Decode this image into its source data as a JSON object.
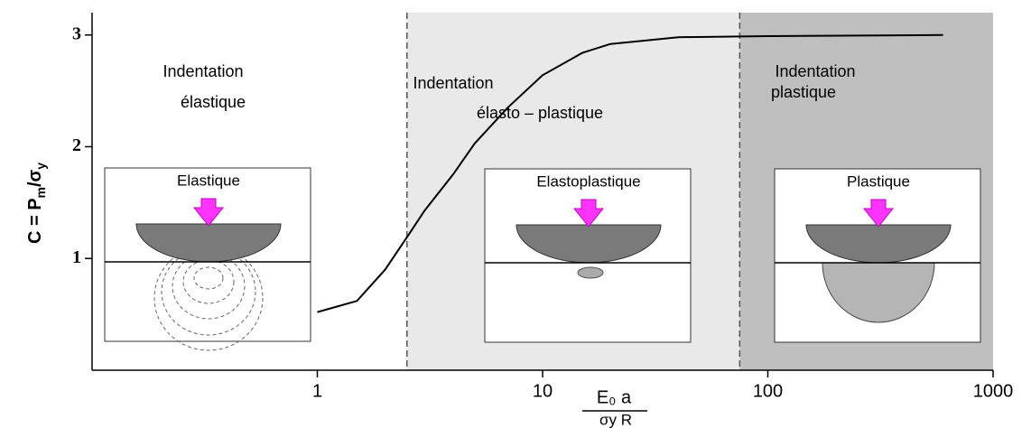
{
  "chart_data": {
    "type": "line",
    "log_x": true,
    "x": [
      1,
      1.5,
      2,
      2.5,
      3,
      4,
      5,
      7,
      10,
      15,
      20,
      40,
      100,
      600
    ],
    "values": [
      0.52,
      0.62,
      0.9,
      1.19,
      1.43,
      1.75,
      2.03,
      2.35,
      2.64,
      2.84,
      2.92,
      2.98,
      2.99,
      3.0
    ],
    "color": "#000000",
    "xlim": [
      0.1,
      1000
    ],
    "ylim": [
      0,
      3.2
    ],
    "xticks": [
      1,
      10,
      100,
      1000
    ],
    "yticks": [
      1,
      2,
      3
    ],
    "y_label": {
      "main": "C = P",
      "sub1": "m",
      "mid": "/σ",
      "sub2": "y"
    },
    "x_label": {
      "numerator": "E₀ a",
      "denominator": "σy R"
    },
    "boundaries": [
      2.5,
      75
    ],
    "region_colors": [
      "#ffffff",
      "#e9e9e9",
      "#bfbfbf"
    ],
    "regions": [
      {
        "line1": "Indentation",
        "line2": "élastique"
      },
      {
        "line1": "Indentation",
        "line2": "élasto – plastique"
      },
      {
        "line1": "Indentation",
        "line2": "plastique"
      }
    ],
    "insets": [
      "Elastique",
      "Elastoplastique",
      "Plastique"
    ]
  }
}
